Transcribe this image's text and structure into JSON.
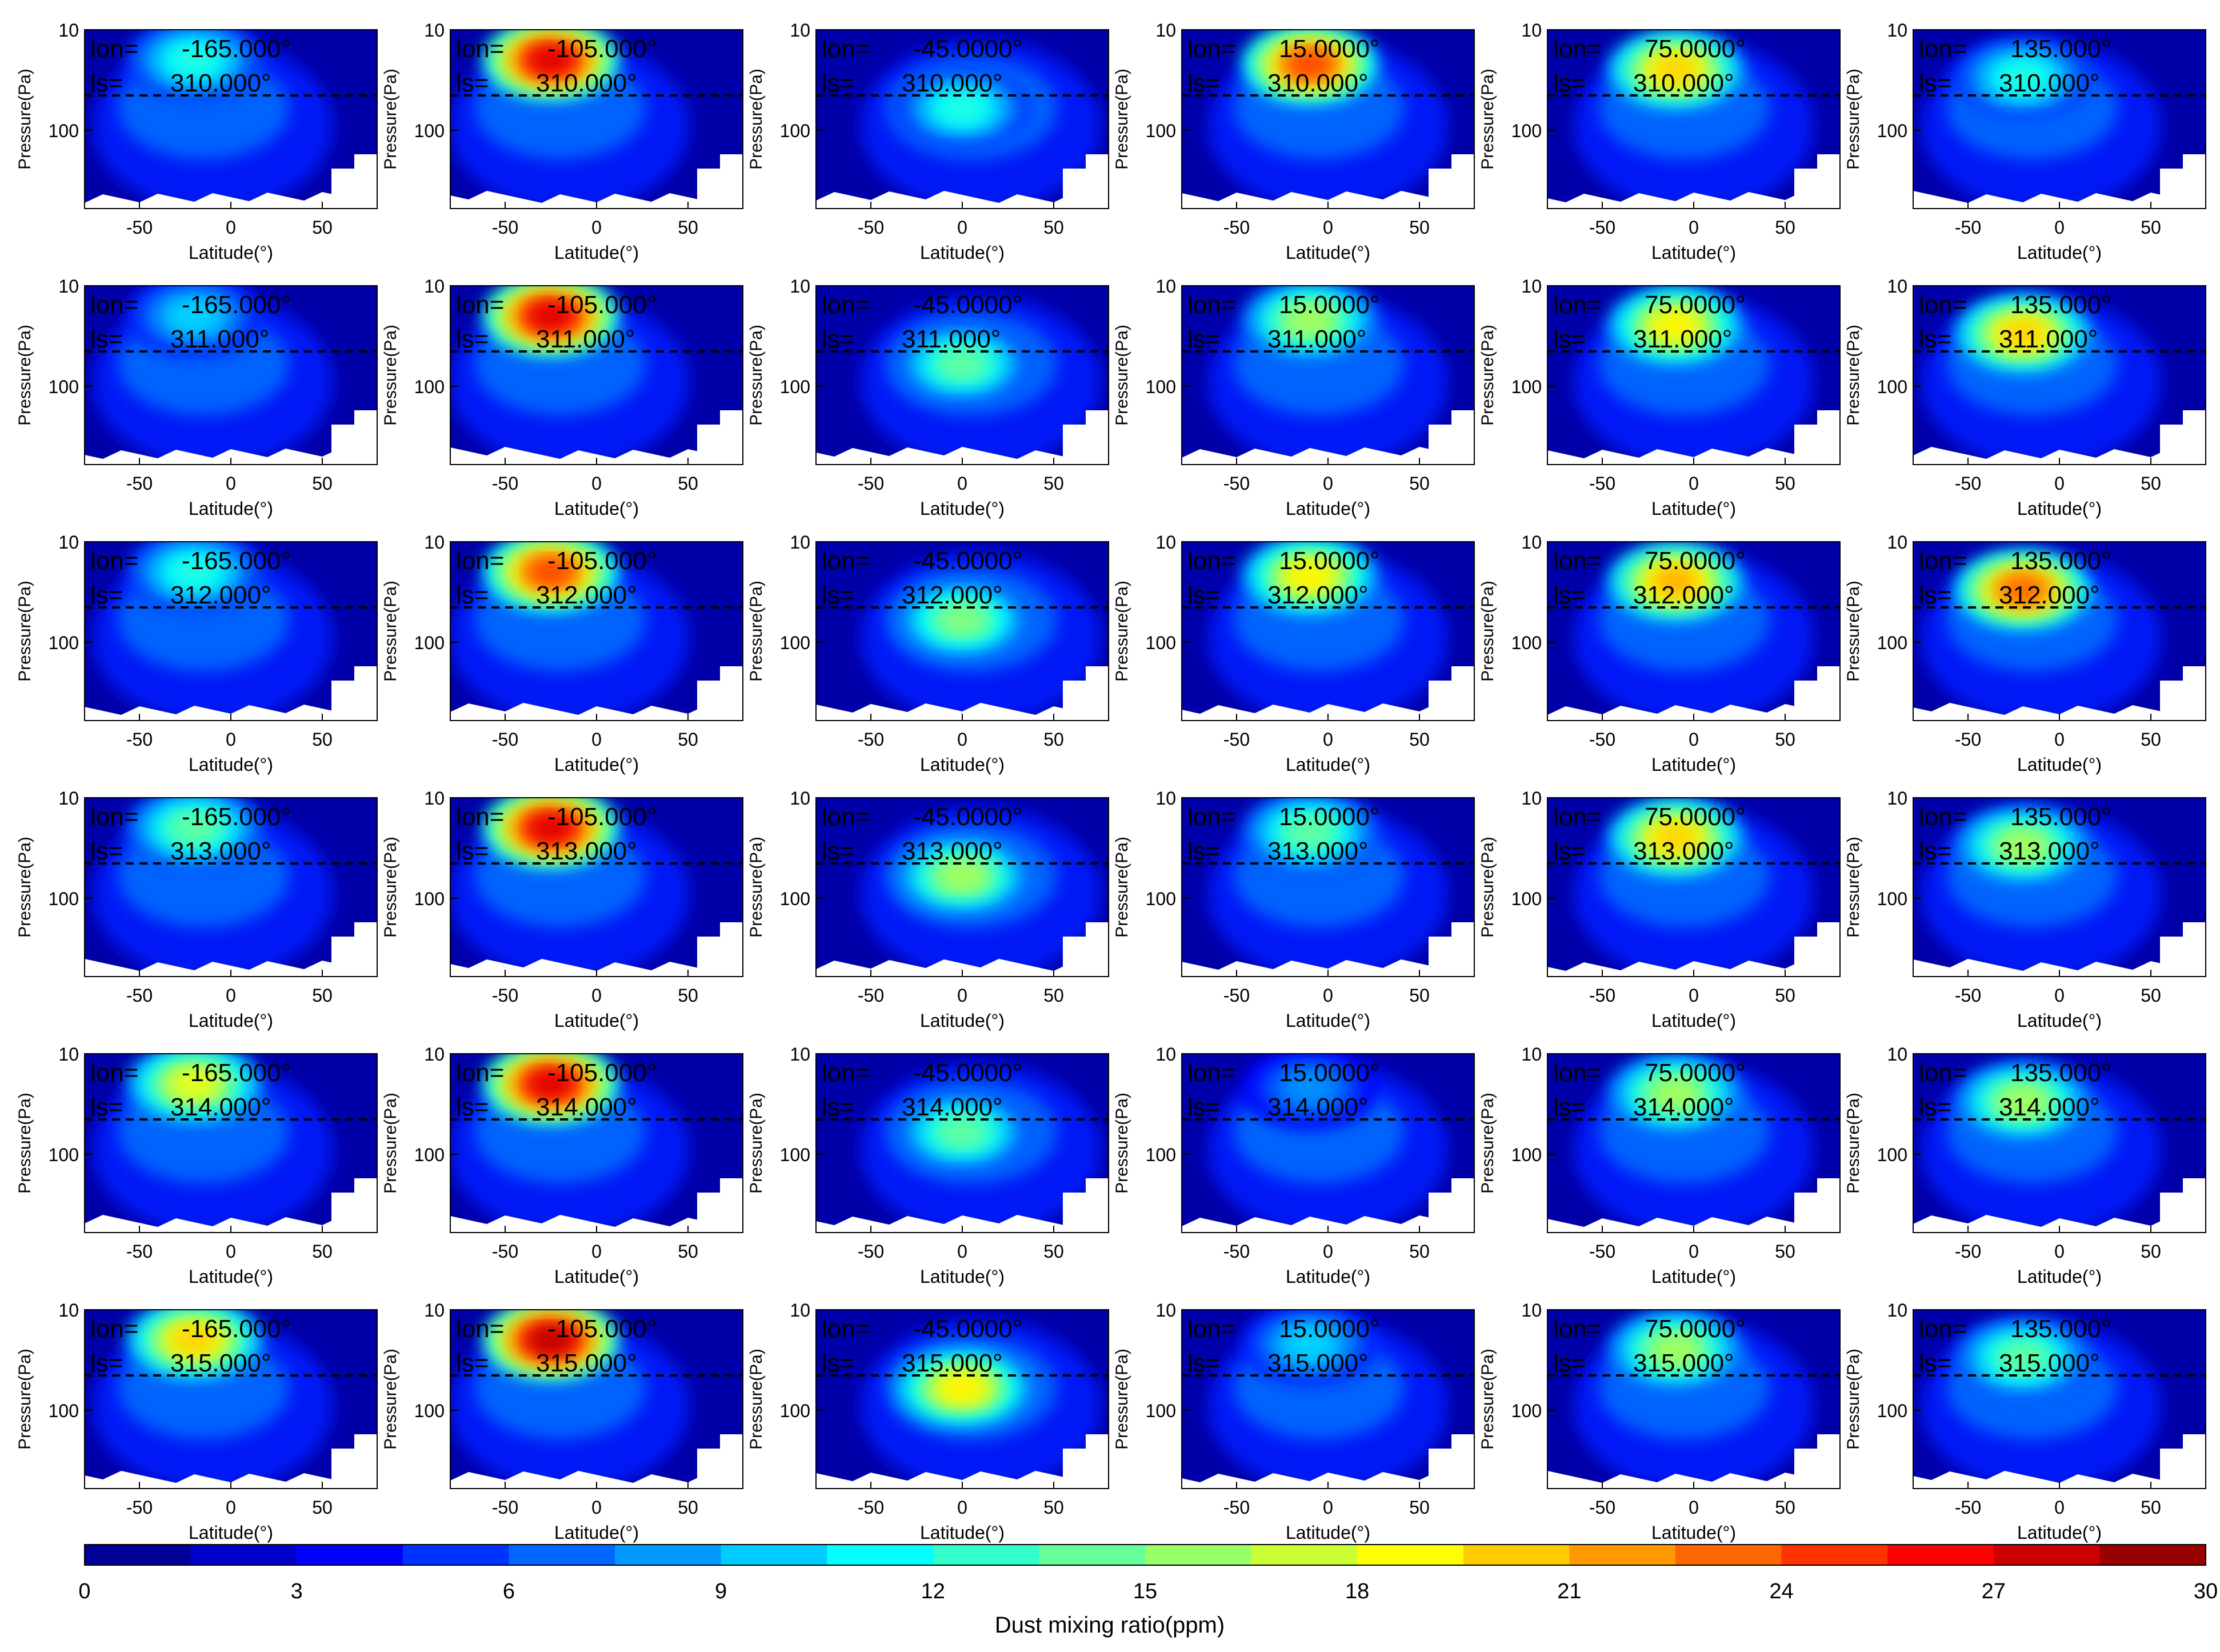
{
  "chart_data": {
    "type": "heatmap",
    "description_units": "Dust mixing ratio (ppm)",
    "panel_grid": {
      "rows": 6,
      "cols": 6
    },
    "longitudes": [
      "-165.000°",
      "-105.000°",
      "-45.0000°",
      "15.0000°",
      "75.0000°",
      "135.000°"
    ],
    "ls_values": [
      "310.000°",
      "311.000°",
      "312.000°",
      "313.000°",
      "314.000°",
      "315.000°"
    ],
    "lon_label": "lon=",
    "ls_label": "ls=",
    "xlabel": "Latitude(°)",
    "ylabel": "Pressure(Pa)",
    "xticks": [
      "-50",
      "0",
      "50"
    ],
    "xlim": [
      -80,
      80
    ],
    "yticks": [
      "10",
      "100"
    ],
    "ylim": [
      10,
      600
    ],
    "y_scale": "log",
    "reference_line_pressure_Pa": 45,
    "colorbar": {
      "label": "Dust mixing ratio(ppm)",
      "ticks": [
        "0",
        "3",
        "6",
        "9",
        "12",
        "15",
        "18",
        "21",
        "24",
        "27",
        "30"
      ],
      "range": [
        0,
        30
      ],
      "levels": 20,
      "colormap": "jet"
    },
    "peak_features": {
      "note": "approximate max dust blobs per longitude column (lat in degrees, pressure in Pa, value in ppm)",
      "columns": [
        {
          "lon": -165,
          "lat": -20,
          "pressure": 20,
          "max_ppm": [
            12,
            10,
            12,
            14,
            18,
            20
          ]
        },
        {
          "lon": -105,
          "lat": -25,
          "pressure": 20,
          "max_ppm": [
            27,
            27,
            24,
            27,
            27,
            28
          ]
        },
        {
          "lon": -45,
          "lat": 0,
          "pressure": 60,
          "max_ppm": [
            12,
            14,
            15,
            16,
            14,
            19
          ]
        },
        {
          "lon": 15,
          "lat": -10,
          "pressure": 22,
          "max_ppm": [
            24,
            16,
            19,
            14,
            8,
            10
          ]
        },
        {
          "lon": 75,
          "lat": -10,
          "pressure": 25,
          "max_ppm": [
            20,
            19,
            21,
            20,
            16,
            16
          ]
        },
        {
          "lon": 135,
          "lat": -20,
          "pressure": 30,
          "max_ppm": [
            12,
            20,
            23,
            16,
            16,
            14
          ]
        }
      ]
    }
  }
}
